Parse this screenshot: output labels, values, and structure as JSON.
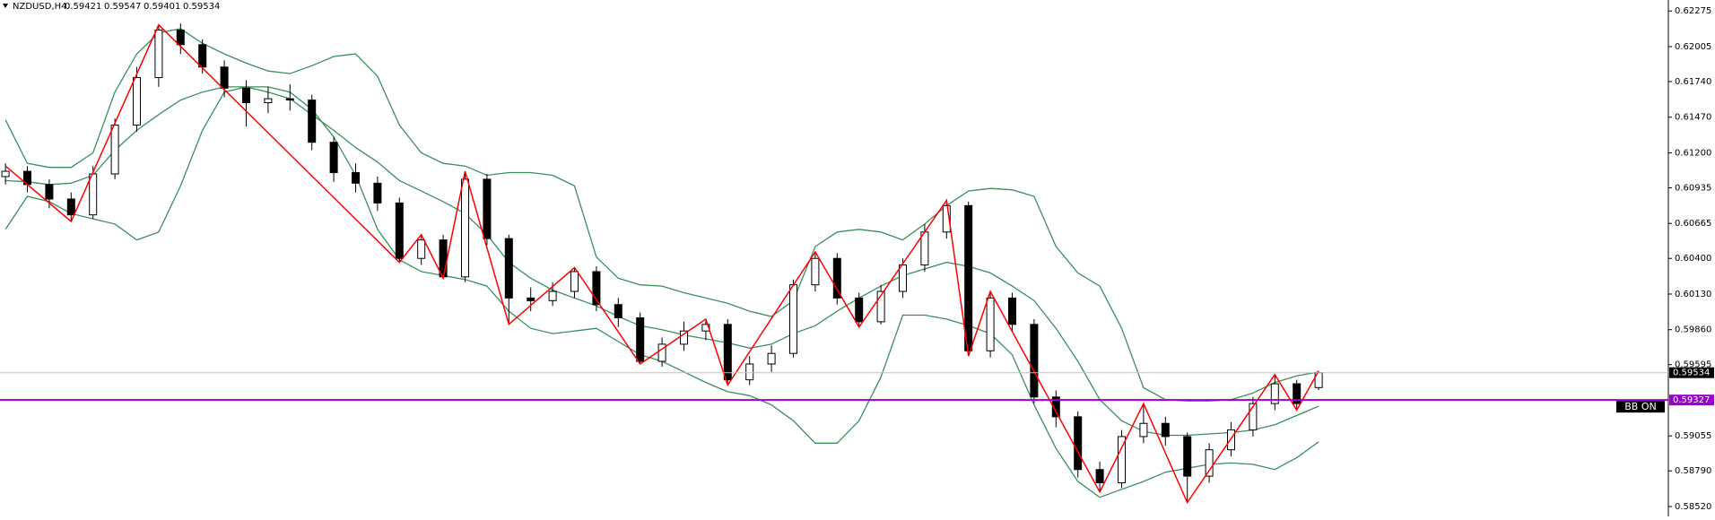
{
  "chart_data": {
    "type": "candlestick",
    "symbol": "NZDUSD,H4",
    "ylim": [
      0.58445,
      0.62358
    ],
    "yticks": [
      0.62275,
      0.62005,
      {
        "value": 0.6174,
        "label": "0.61740"
      },
      {
        "value": 0.6147,
        "label": "0.61470"
      },
      {
        "value": 0.612,
        "label": "0.61200"
      },
      0.60935,
      0.60665,
      {
        "value": 0.604,
        "label": "0.60400"
      },
      {
        "value": 0.6013,
        "label": "0.60130"
      },
      {
        "value": 0.5986,
        "label": "0.59860"
      },
      0.59595,
      0.59055,
      {
        "value": 0.5879,
        "label": "0.58790"
      },
      {
        "value": 0.5852,
        "label": "0.58520"
      }
    ],
    "open": [
      0.6102,
      0.6106,
      0.6096,
      0.6085,
      0.6073,
      0.6104,
      0.6141,
      0.6177,
      0.6213,
      0.6202,
      0.6185,
      0.6169,
      0.6158,
      0.6161,
      0.616,
      0.6128,
      0.6105,
      0.6097,
      0.6082,
      0.604,
      0.6054,
      0.6026,
      0.61,
      0.6055,
      0.601,
      0.6008,
      0.6015,
      0.603,
      0.6005,
      0.5995,
      0.5962,
      0.5975,
      0.5985,
      0.599,
      0.5948,
      0.596,
      0.5968,
      0.602,
      0.604,
      0.601,
      0.5992,
      0.6015,
      0.6035,
      0.606,
      0.608,
      0.597,
      0.601,
      0.599,
      0.5935,
      0.592,
      0.588,
      0.587,
      0.5905,
      0.5915,
      0.5905,
      0.5875,
      0.5895,
      0.591,
      0.593,
      0.5945,
      0.59421
    ],
    "high": [
      0.6112,
      0.611,
      0.61,
      0.609,
      0.611,
      0.6146,
      0.6185,
      0.6217,
      0.6218,
      0.6206,
      0.619,
      0.6175,
      0.617,
      0.6172,
      0.6164,
      0.6132,
      0.6112,
      0.6102,
      0.6086,
      0.6058,
      0.6058,
      0.6106,
      0.6104,
      0.6058,
      0.6018,
      0.6022,
      0.6033,
      0.6034,
      0.601,
      0.5999,
      0.598,
      0.5992,
      0.5994,
      0.5994,
      0.5966,
      0.5974,
      0.6024,
      0.6045,
      0.6044,
      0.6014,
      0.602,
      0.604,
      0.6066,
      0.6084,
      0.6083,
      0.6015,
      0.6014,
      0.5994,
      0.594,
      0.5924,
      0.5886,
      0.591,
      0.593,
      0.592,
      0.5908,
      0.59,
      0.5916,
      0.5935,
      0.5952,
      0.5948,
      0.59547
    ],
    "low": [
      0.6096,
      0.609,
      0.6078,
      0.6068,
      0.607,
      0.61,
      0.6136,
      0.617,
      0.6195,
      0.618,
      0.6162,
      0.614,
      0.615,
      0.6152,
      0.6122,
      0.6098,
      0.609,
      0.6076,
      0.6037,
      0.6035,
      0.6025,
      0.6022,
      0.605,
      0.599,
      0.6,
      0.6004,
      0.601,
      0.6,
      0.5988,
      0.596,
      0.5958,
      0.597,
      0.5978,
      0.5944,
      0.5944,
      0.5954,
      0.5965,
      0.6015,
      0.6005,
      0.5988,
      0.599,
      0.601,
      0.603,
      0.6055,
      0.5966,
      0.5965,
      0.5984,
      0.593,
      0.5912,
      0.5874,
      0.5863,
      0.5866,
      0.59,
      0.5898,
      0.5855,
      0.587,
      0.589,
      0.5905,
      0.5925,
      0.5925,
      0.59401
    ],
    "close": [
      0.6106,
      0.6096,
      0.6085,
      0.6073,
      0.6104,
      0.6141,
      0.6177,
      0.6213,
      0.6202,
      0.6185,
      0.6169,
      0.6158,
      0.6161,
      0.616,
      0.6128,
      0.6105,
      0.6097,
      0.6082,
      0.604,
      0.6054,
      0.6026,
      0.61,
      0.6055,
      0.601,
      0.6008,
      0.6015,
      0.603,
      0.6005,
      0.5995,
      0.5962,
      0.5975,
      0.5985,
      0.599,
      0.5948,
      0.596,
      0.5968,
      0.602,
      0.604,
      0.601,
      0.5992,
      0.6015,
      0.6035,
      0.606,
      0.608,
      0.597,
      0.601,
      0.599,
      0.5935,
      0.592,
      0.588,
      0.587,
      0.5905,
      0.5915,
      0.5905,
      0.5875,
      0.5895,
      0.591,
      0.593,
      0.5945,
      0.593,
      0.59534
    ],
    "bands": {
      "color": "#3b8f5e",
      "upper": [
        0.6145,
        0.6112,
        0.6109,
        0.6109,
        0.612,
        0.6166,
        0.6195,
        0.6211,
        0.6214,
        0.6203,
        0.6195,
        0.6188,
        0.6182,
        0.618,
        0.6186,
        0.6193,
        0.6195,
        0.6178,
        0.6141,
        0.612,
        0.6112,
        0.611,
        0.6103,
        0.6105,
        0.6105,
        0.6103,
        0.6095,
        0.6041,
        0.6025,
        0.602,
        0.6019,
        0.6014,
        0.601,
        0.6006,
        0.6,
        0.5996,
        0.6008,
        0.6049,
        0.606,
        0.6062,
        0.606,
        0.6054,
        0.6066,
        0.608,
        0.6091,
        0.6093,
        0.6092,
        0.6087,
        0.6049,
        0.6029,
        0.6019,
        0.5987,
        0.5942,
        0.5933,
        0.5932,
        0.5932,
        0.5933,
        0.5938,
        0.5946,
        0.5951,
        0.5954
      ],
      "middle": [
        0.6099,
        0.6098,
        0.6096,
        0.6097,
        0.6103,
        0.6122,
        0.6137,
        0.6149,
        0.616,
        0.6166,
        0.617,
        0.617,
        0.6166,
        0.6161,
        0.6149,
        0.6137,
        0.6124,
        0.6113,
        0.6099,
        0.6091,
        0.6083,
        0.6074,
        0.6058,
        0.6037,
        0.6025,
        0.6016,
        0.601,
        0.6004,
        0.5996,
        0.5989,
        0.5986,
        0.5982,
        0.5979,
        0.5976,
        0.5972,
        0.5975,
        0.5983,
        0.5989,
        0.6,
        0.601,
        0.6019,
        0.6027,
        0.6032,
        0.6037,
        0.6034,
        0.6029,
        0.6019,
        0.6008,
        0.5987,
        0.5962,
        0.5933,
        0.5917,
        0.5909,
        0.5906,
        0.5906,
        0.5907,
        0.5908,
        0.591,
        0.5914,
        0.5921,
        0.5928
      ],
      "lower": [
        0.6062,
        0.6087,
        0.6083,
        0.6074,
        0.607,
        0.6066,
        0.6054,
        0.606,
        0.6095,
        0.6137,
        0.6166,
        0.617,
        0.617,
        0.6166,
        0.6153,
        0.6132,
        0.6103,
        0.6062,
        0.6039,
        0.603,
        0.6027,
        0.6024,
        0.6019,
        0.6,
        0.5987,
        0.5983,
        0.5985,
        0.5987,
        0.5977,
        0.5967,
        0.5962,
        0.5954,
        0.5946,
        0.5939,
        0.5936,
        0.5929,
        0.5917,
        0.59,
        0.59,
        0.5917,
        0.595,
        0.5997,
        0.5997,
        0.5994,
        0.5989,
        0.5983,
        0.5967,
        0.5929,
        0.5896,
        0.5871,
        0.5859,
        0.5865,
        0.5871,
        0.5878,
        0.5881,
        0.5884,
        0.5885,
        0.5884,
        0.588,
        0.5889,
        0.5901
      ]
    },
    "zigzag": {
      "color": "#ff0000",
      "index": [
        0,
        3,
        7,
        18,
        19,
        20,
        21,
        23,
        26,
        29,
        32,
        33,
        37,
        39,
        43,
        44,
        45,
        50,
        52,
        54,
        58,
        59,
        60
      ],
      "values": [
        0.611,
        0.6068,
        0.6217,
        0.6037,
        0.6058,
        0.6025,
        0.6106,
        0.599,
        0.6033,
        0.596,
        0.5994,
        0.5944,
        0.6045,
        0.5988,
        0.6084,
        0.5966,
        0.6015,
        0.5863,
        0.593,
        0.5855,
        0.5952,
        0.5925,
        0.59547
      ]
    },
    "level": {
      "value": 0.59327,
      "color": "#9b00d0"
    },
    "button": "BB ON"
  }
}
